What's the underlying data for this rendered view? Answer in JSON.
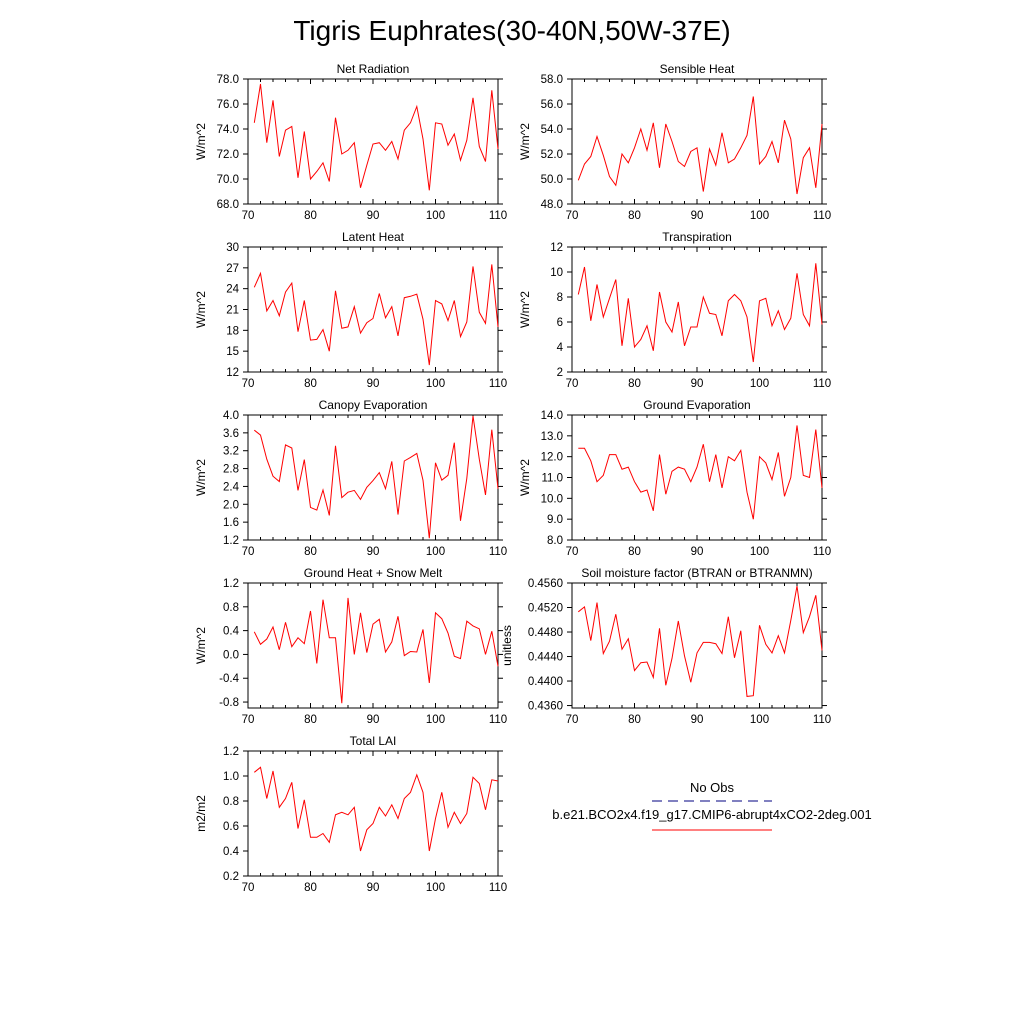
{
  "title": "Tigris Euphrates(30-40N,50W-37E)",
  "legend": {
    "entries": [
      {
        "label": "No Obs",
        "color": "#000080",
        "style": "dashed"
      },
      {
        "label": "b.e21.BCO2x4.f19_g17.CMIP6-abrupt4xCO2-2deg.001",
        "color": "#ff0000",
        "style": "solid"
      }
    ]
  },
  "colors": {
    "series": "#ff0000",
    "obs": "#000080"
  },
  "chart_data": [
    {
      "type": "line",
      "title": "Net Radiation",
      "ylabel": "W/m^2",
      "xlim": [
        70,
        110
      ],
      "ylim": [
        68,
        78
      ],
      "xticks": [
        "70",
        "80",
        "90",
        "100",
        "110"
      ],
      "yticks": [
        "68.0",
        "70.0",
        "72.0",
        "74.0",
        "76.0",
        "78.0"
      ],
      "x": [
        71,
        72,
        73,
        74,
        75,
        76,
        77,
        78,
        79,
        80,
        81,
        82,
        83,
        84,
        85,
        86,
        87,
        88,
        89,
        90,
        91,
        92,
        93,
        94,
        95,
        96,
        97,
        98,
        99,
        100,
        101,
        102,
        103,
        104,
        105,
        106,
        107,
        108,
        109,
        110
      ],
      "series": [
        {
          "name": "b.e21.BCO2x4.f19_g17.CMIP6-abrupt4xCO2-2deg.001",
          "values": [
            74.5,
            77.6,
            72.9,
            76.3,
            71.8,
            73.9,
            74.2,
            70.1,
            73.8,
            70.0,
            70.6,
            71.3,
            69.8,
            74.9,
            72.0,
            72.3,
            72.9,
            69.3,
            71.1,
            72.8,
            72.9,
            72.3,
            73.0,
            71.6,
            73.9,
            74.5,
            75.8,
            73.2,
            69.1,
            74.5,
            74.4,
            72.7,
            73.6,
            71.5,
            73.1,
            76.5,
            72.6,
            71.4,
            77.1,
            72.4
          ]
        }
      ]
    },
    {
      "type": "line",
      "title": "Sensible Heat",
      "ylabel": "W/m^2",
      "xlim": [
        70,
        110
      ],
      "ylim": [
        48,
        58
      ],
      "xticks": [
        "70",
        "80",
        "90",
        "100",
        "110"
      ],
      "yticks": [
        "48.0",
        "50.0",
        "52.0",
        "54.0",
        "56.0",
        "58.0"
      ],
      "x": [
        71,
        72,
        73,
        74,
        75,
        76,
        77,
        78,
        79,
        80,
        81,
        82,
        83,
        84,
        85,
        86,
        87,
        88,
        89,
        90,
        91,
        92,
        93,
        94,
        95,
        96,
        97,
        98,
        99,
        100,
        101,
        102,
        103,
        104,
        105,
        106,
        107,
        108,
        109,
        110
      ],
      "series": [
        {
          "name": "b.e21.BCO2x4.f19_g17.CMIP6-abrupt4xCO2-2deg.001",
          "values": [
            49.9,
            51.2,
            51.8,
            53.4,
            51.9,
            50.2,
            49.5,
            52.0,
            51.3,
            52.5,
            54.0,
            52.3,
            54.5,
            50.9,
            54.4,
            53.0,
            51.4,
            51.0,
            52.2,
            52.5,
            49.0,
            52.4,
            51.1,
            53.7,
            51.3,
            51.6,
            52.5,
            53.5,
            56.6,
            51.2,
            51.8,
            53.0,
            51.3,
            54.7,
            53.2,
            48.8,
            51.7,
            52.5,
            49.3,
            54.4
          ]
        }
      ]
    },
    {
      "type": "line",
      "title": "Latent Heat",
      "ylabel": "W/m^2",
      "xlim": [
        70,
        110
      ],
      "ylim": [
        12,
        30
      ],
      "xticks": [
        "70",
        "80",
        "90",
        "100",
        "110"
      ],
      "yticks": [
        "12",
        "15",
        "18",
        "21",
        "24",
        "27",
        "30"
      ],
      "x": [
        71,
        72,
        73,
        74,
        75,
        76,
        77,
        78,
        79,
        80,
        81,
        82,
        83,
        84,
        85,
        86,
        87,
        88,
        89,
        90,
        91,
        92,
        93,
        94,
        95,
        96,
        97,
        98,
        99,
        100,
        101,
        102,
        103,
        104,
        105,
        106,
        107,
        108,
        109,
        110
      ],
      "series": [
        {
          "name": "b.e21.BCO2x4.f19_g17.CMIP6-abrupt4xCO2-2deg.001",
          "values": [
            24.2,
            26.2,
            20.8,
            22.3,
            20.1,
            23.5,
            24.8,
            17.8,
            22.3,
            16.6,
            16.7,
            18.1,
            15.0,
            23.7,
            18.3,
            18.5,
            21.4,
            17.6,
            19.1,
            19.7,
            23.3,
            19.8,
            21.4,
            17.2,
            22.7,
            22.9,
            23.2,
            19.6,
            13.0,
            22.3,
            21.8,
            19.4,
            22.3,
            17.1,
            19.2,
            27.2,
            20.6,
            19.0,
            27.5,
            18.5
          ]
        }
      ]
    },
    {
      "type": "line",
      "title": "Transpiration",
      "ylabel": "W/m^2",
      "xlim": [
        70,
        110
      ],
      "ylim": [
        2,
        12
      ],
      "xticks": [
        "70",
        "80",
        "90",
        "100",
        "110"
      ],
      "yticks": [
        "2",
        "4",
        "6",
        "8",
        "10",
        "12"
      ],
      "x": [
        71,
        72,
        73,
        74,
        75,
        76,
        77,
        78,
        79,
        80,
        81,
        82,
        83,
        84,
        85,
        86,
        87,
        88,
        89,
        90,
        91,
        92,
        93,
        94,
        95,
        96,
        97,
        98,
        99,
        100,
        101,
        102,
        103,
        104,
        105,
        106,
        107,
        108,
        109,
        110
      ],
      "series": [
        {
          "name": "b.e21.BCO2x4.f19_g17.CMIP6-abrupt4xCO2-2deg.001",
          "values": [
            8.2,
            10.4,
            6.1,
            9.0,
            6.4,
            7.9,
            9.4,
            4.1,
            7.9,
            4.0,
            4.6,
            5.7,
            3.7,
            8.4,
            6.0,
            5.2,
            7.6,
            4.1,
            5.6,
            5.6,
            8.0,
            6.7,
            6.6,
            4.9,
            7.7,
            8.2,
            7.7,
            6.4,
            2.8,
            7.7,
            7.9,
            5.7,
            6.9,
            5.4,
            6.3,
            9.9,
            6.6,
            5.7,
            10.7,
            5.8
          ]
        }
      ]
    },
    {
      "type": "line",
      "title": "Canopy Evaporation",
      "ylabel": "W/m^2",
      "xlim": [
        70,
        110
      ],
      "ylim": [
        1.2,
        4.0
      ],
      "xticks": [
        "70",
        "80",
        "90",
        "100",
        "110"
      ],
      "yticks": [
        "1.2",
        "1.6",
        "2.0",
        "2.4",
        "2.8",
        "3.2",
        "3.6",
        "4.0"
      ],
      "x": [
        71,
        72,
        73,
        74,
        75,
        76,
        77,
        78,
        79,
        80,
        81,
        82,
        83,
        84,
        85,
        86,
        87,
        88,
        89,
        90,
        91,
        92,
        93,
        94,
        95,
        96,
        97,
        98,
        99,
        100,
        101,
        102,
        103,
        104,
        105,
        106,
        107,
        108,
        109,
        110
      ],
      "series": [
        {
          "name": "b.e21.BCO2x4.f19_g17.CMIP6-abrupt4xCO2-2deg.001",
          "values": [
            3.66,
            3.55,
            3.01,
            2.63,
            2.51,
            3.33,
            3.26,
            2.31,
            3.0,
            1.93,
            1.87,
            2.32,
            1.75,
            3.31,
            2.15,
            2.27,
            2.31,
            2.11,
            2.38,
            2.53,
            2.71,
            2.35,
            2.96,
            1.77,
            2.97,
            3.05,
            3.14,
            2.54,
            1.24,
            2.93,
            2.54,
            2.65,
            3.38,
            1.63,
            2.58,
            3.98,
            3.01,
            2.21,
            3.67,
            2.35
          ]
        }
      ]
    },
    {
      "type": "line",
      "title": "Ground Evaporation",
      "ylabel": "W/m^2",
      "xlim": [
        70,
        110
      ],
      "ylim": [
        8,
        14
      ],
      "xticks": [
        "70",
        "80",
        "90",
        "100",
        "110"
      ],
      "yticks": [
        "8.0",
        "9.0",
        "10.0",
        "11.0",
        "12.0",
        "13.0",
        "14.0"
      ],
      "x": [
        71,
        72,
        73,
        74,
        75,
        76,
        77,
        78,
        79,
        80,
        81,
        82,
        83,
        84,
        85,
        86,
        87,
        88,
        89,
        90,
        91,
        92,
        93,
        94,
        95,
        96,
        97,
        98,
        99,
        100,
        101,
        102,
        103,
        104,
        105,
        106,
        107,
        108,
        109,
        110
      ],
      "series": [
        {
          "name": "b.e21.BCO2x4.f19_g17.CMIP6-abrupt4xCO2-2deg.001",
          "values": [
            12.4,
            12.4,
            11.8,
            10.8,
            11.1,
            12.1,
            12.1,
            11.4,
            11.5,
            10.8,
            10.3,
            10.4,
            9.4,
            12.1,
            10.2,
            11.3,
            11.5,
            11.4,
            10.8,
            11.5,
            12.6,
            10.8,
            12.1,
            10.5,
            12.0,
            11.8,
            12.3,
            10.3,
            9.0,
            12.0,
            11.7,
            10.9,
            12.2,
            10.1,
            11.0,
            13.5,
            11.1,
            11.0,
            13.3,
            10.5
          ]
        }
      ]
    },
    {
      "type": "line",
      "title": "Ground Heat + Snow Melt",
      "ylabel": "W/m^2",
      "xlim": [
        70,
        110
      ],
      "ylim": [
        -0.9,
        1.2
      ],
      "xticks": [
        "70",
        "80",
        "90",
        "100",
        "110"
      ],
      "yticks": [
        "-0.8",
        "-0.4",
        "0.0",
        "0.4",
        "0.8",
        "1.2"
      ],
      "x": [
        71,
        72,
        73,
        74,
        75,
        76,
        77,
        78,
        79,
        80,
        81,
        82,
        83,
        84,
        85,
        86,
        87,
        88,
        89,
        90,
        91,
        92,
        93,
        94,
        95,
        96,
        97,
        98,
        99,
        100,
        101,
        102,
        103,
        104,
        105,
        106,
        107,
        108,
        109,
        110
      ],
      "series": [
        {
          "name": "b.e21.BCO2x4.f19_g17.CMIP6-abrupt4xCO2-2deg.001",
          "values": [
            0.38,
            0.17,
            0.26,
            0.46,
            0.08,
            0.54,
            0.13,
            0.28,
            0.18,
            0.73,
            -0.15,
            0.92,
            0.28,
            0.28,
            -0.82,
            0.95,
            0.0,
            0.7,
            0.03,
            0.51,
            0.59,
            0.04,
            0.21,
            0.64,
            -0.02,
            0.05,
            0.04,
            0.42,
            -0.48,
            0.7,
            0.6,
            0.36,
            -0.03,
            -0.07,
            0.56,
            0.48,
            0.43,
            0.0,
            0.39,
            -0.2
          ]
        }
      ]
    },
    {
      "type": "line",
      "title": "Soil moisture factor (BTRAN or BTRANMN)",
      "ylabel": "unitless",
      "xlim": [
        70,
        110
      ],
      "ylim": [
        0.4356,
        0.456
      ],
      "xticks": [
        "70",
        "80",
        "90",
        "100",
        "110"
      ],
      "yticks": [
        "0.4360",
        "0.4400",
        "0.4440",
        "0.4480",
        "0.4520",
        "0.4560"
      ],
      "x": [
        71,
        72,
        73,
        74,
        75,
        76,
        77,
        78,
        79,
        80,
        81,
        82,
        83,
        84,
        85,
        86,
        87,
        88,
        89,
        90,
        91,
        92,
        93,
        94,
        95,
        96,
        97,
        98,
        99,
        100,
        101,
        102,
        103,
        104,
        105,
        106,
        107,
        108,
        109,
        110
      ],
      "series": [
        {
          "name": "b.e21.BCO2x4.f19_g17.CMIP6-abrupt4xCO2-2deg.001",
          "values": [
            0.4513,
            0.4521,
            0.4466,
            0.4528,
            0.4445,
            0.4465,
            0.4509,
            0.4452,
            0.4469,
            0.4417,
            0.443,
            0.4431,
            0.4406,
            0.4486,
            0.4393,
            0.4437,
            0.4498,
            0.4441,
            0.4398,
            0.4446,
            0.4463,
            0.4463,
            0.4461,
            0.4445,
            0.4505,
            0.4438,
            0.4482,
            0.4375,
            0.4376,
            0.4491,
            0.446,
            0.4446,
            0.4474,
            0.4446,
            0.4499,
            0.4555,
            0.4479,
            0.4505,
            0.454,
            0.445
          ]
        }
      ]
    },
    {
      "type": "line",
      "title": "Total LAI",
      "ylabel": "m2/m2",
      "xlim": [
        70,
        110
      ],
      "ylim": [
        0.2,
        1.2
      ],
      "xticks": [
        "70",
        "80",
        "90",
        "100",
        "110"
      ],
      "yticks": [
        "0.2",
        "0.4",
        "0.6",
        "0.8",
        "1.0",
        "1.2"
      ],
      "x": [
        71,
        72,
        73,
        74,
        75,
        76,
        77,
        78,
        79,
        80,
        81,
        82,
        83,
        84,
        85,
        86,
        87,
        88,
        89,
        90,
        91,
        92,
        93,
        94,
        95,
        96,
        97,
        98,
        99,
        100,
        101,
        102,
        103,
        104,
        105,
        106,
        107,
        108,
        109,
        110
      ],
      "series": [
        {
          "name": "b.e21.BCO2x4.f19_g17.CMIP6-abrupt4xCO2-2deg.001",
          "values": [
            1.03,
            1.07,
            0.82,
            1.04,
            0.75,
            0.82,
            0.95,
            0.58,
            0.81,
            0.51,
            0.51,
            0.54,
            0.47,
            0.69,
            0.71,
            0.69,
            0.75,
            0.4,
            0.57,
            0.62,
            0.75,
            0.68,
            0.77,
            0.66,
            0.82,
            0.87,
            1.01,
            0.87,
            0.4,
            0.66,
            0.87,
            0.59,
            0.71,
            0.62,
            0.7,
            0.99,
            0.94,
            0.73,
            0.97,
            0.96
          ]
        }
      ]
    }
  ]
}
